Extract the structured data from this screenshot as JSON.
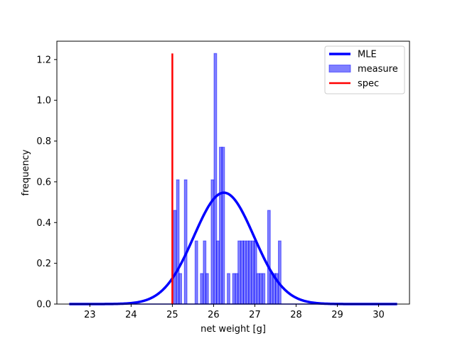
{
  "chart_data": {
    "type": "bar",
    "title": "",
    "xlabel": "net weight [g]",
    "ylabel": "frequency",
    "xlim": [
      22.2,
      30.75
    ],
    "ylim": [
      0,
      1.29
    ],
    "grid": false,
    "legend_position": "top-right",
    "xticks": [
      "23",
      "24",
      "25",
      "26",
      "27",
      "28",
      "29",
      "30"
    ],
    "xtick_values": [
      23,
      24,
      25,
      26,
      27,
      28,
      29,
      30
    ],
    "yticks": [
      "0.0",
      "0.2",
      "0.4",
      "0.6",
      "0.8",
      "1.0",
      "1.2"
    ],
    "ytick_values": [
      0,
      0.2,
      0.4,
      0.6,
      0.8,
      1.0,
      1.2
    ],
    "legend": [
      {
        "label": "MLE",
        "kind": "line",
        "color": "#0000ff"
      },
      {
        "label": "measure",
        "kind": "patch",
        "color": "#8080ff"
      },
      {
        "label": "spec",
        "kind": "line",
        "color": "#ff0000"
      }
    ],
    "histogram": {
      "name": "measure",
      "color": "#0000ff",
      "bin_width": 0.0651,
      "bins": [
        {
          "x0": 25.03,
          "value": 0.46
        },
        {
          "x0": 25.1,
          "value": 0.61
        },
        {
          "x0": 25.16,
          "value": 0.15
        },
        {
          "x0": 25.29,
          "value": 0.61
        },
        {
          "x0": 25.55,
          "value": 0.31
        },
        {
          "x0": 25.68,
          "value": 0.15
        },
        {
          "x0": 25.75,
          "value": 0.31
        },
        {
          "x0": 25.81,
          "value": 0.15
        },
        {
          "x0": 25.94,
          "value": 0.61
        },
        {
          "x0": 26.01,
          "value": 1.23
        },
        {
          "x0": 26.07,
          "value": 0.31
        },
        {
          "x0": 26.14,
          "value": 0.77
        },
        {
          "x0": 26.2,
          "value": 0.77
        },
        {
          "x0": 26.33,
          "value": 0.15
        },
        {
          "x0": 26.46,
          "value": 0.15
        },
        {
          "x0": 26.53,
          "value": 0.15
        },
        {
          "x0": 26.59,
          "value": 0.31
        },
        {
          "x0": 26.66,
          "value": 0.31
        },
        {
          "x0": 26.72,
          "value": 0.31
        },
        {
          "x0": 26.79,
          "value": 0.31
        },
        {
          "x0": 26.85,
          "value": 0.31
        },
        {
          "x0": 26.92,
          "value": 0.31
        },
        {
          "x0": 26.98,
          "value": 0.31
        },
        {
          "x0": 27.05,
          "value": 0.15
        },
        {
          "x0": 27.11,
          "value": 0.15
        },
        {
          "x0": 27.18,
          "value": 0.15
        },
        {
          "x0": 27.31,
          "value": 0.46
        },
        {
          "x0": 27.37,
          "value": 0.15
        },
        {
          "x0": 27.44,
          "value": 0.15
        },
        {
          "x0": 27.5,
          "value": 0.15
        },
        {
          "x0": 27.57,
          "value": 0.31
        }
      ]
    },
    "mle_curve": {
      "name": "MLE",
      "color": "#0000ff",
      "distribution": "normal",
      "mean": 26.25,
      "std": 0.73,
      "x_range": [
        22.5,
        30.45
      ]
    },
    "spec_line": {
      "name": "spec",
      "color": "#ff0000",
      "x": 25.0,
      "y_range": [
        0,
        1.23
      ]
    },
    "flat_baseline": {
      "x_range": [
        22.5,
        30.45
      ],
      "value": 0
    }
  }
}
